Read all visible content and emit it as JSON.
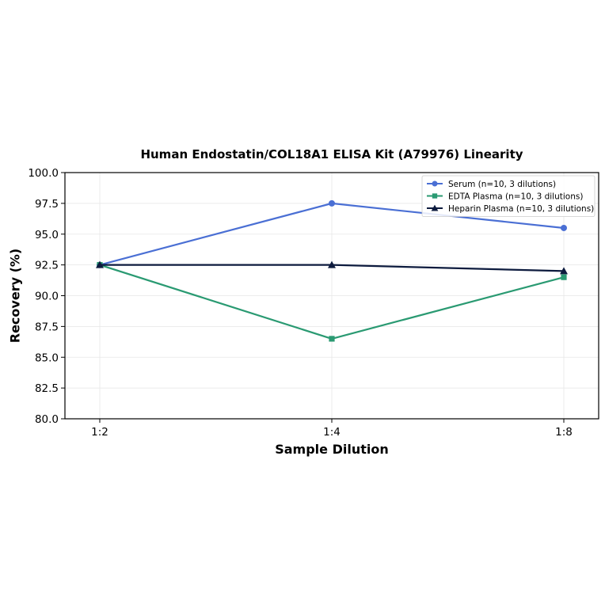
{
  "chart_data": {
    "type": "line",
    "title": "Human Endostatin/COL18A1 ELISA Kit (A79976) Linearity",
    "xlabel": "Sample Dilution",
    "ylabel": "Recovery (%)",
    "categories": [
      "1:2",
      "1:4",
      "1:8"
    ],
    "ylim": [
      80.0,
      100.0
    ],
    "yticks": [
      "80.0",
      "82.5",
      "85.0",
      "87.5",
      "90.0",
      "92.5",
      "95.0",
      "97.5",
      "100.0"
    ],
    "grid": true,
    "legend_position": "top-right",
    "series": [
      {
        "name": "Serum (n=10, 3 dilutions)",
        "values": [
          92.5,
          97.5,
          95.5
        ],
        "color": "#4a6fd4",
        "marker": "circle"
      },
      {
        "name": "EDTA Plasma (n=10, 3 dilutions)",
        "values": [
          92.5,
          86.5,
          91.5
        ],
        "color": "#2a9a72",
        "marker": "square"
      },
      {
        "name": "Heparin Plasma (n=10, 3 dilutions)",
        "values": [
          92.5,
          92.5,
          92.0
        ],
        "color": "#0d1b3e",
        "marker": "triangle"
      }
    ]
  }
}
